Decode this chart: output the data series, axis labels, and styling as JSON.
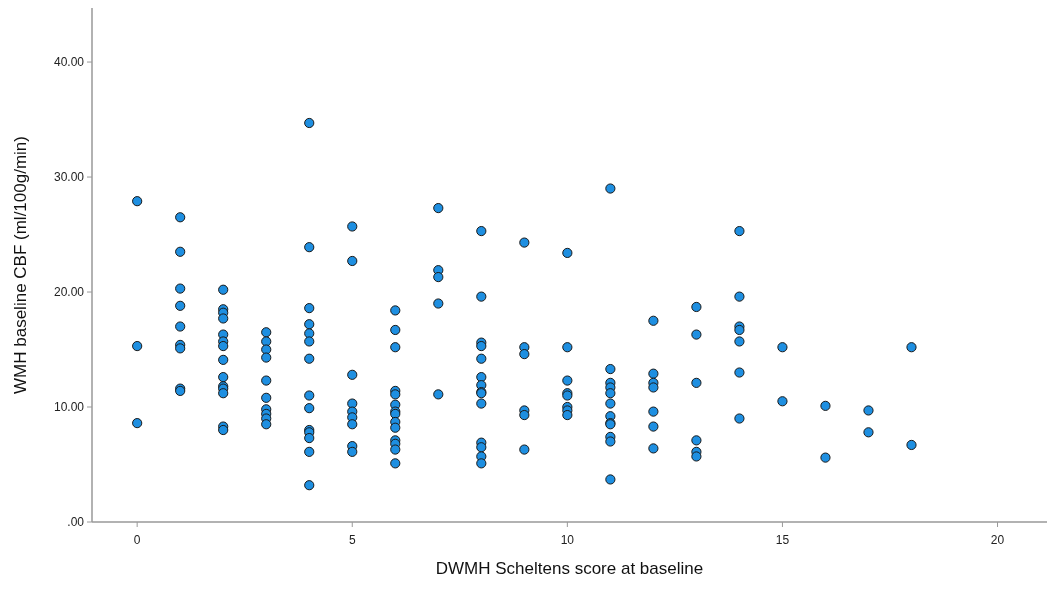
{
  "chart_data": {
    "type": "scatter",
    "xlabel": "DWMH Scheltens score at baseline",
    "ylabel": "WMH baseline CBF (ml/100g/min)",
    "xlim": [
      -1.05,
      21.15
    ],
    "xticks": [
      0,
      5,
      10,
      15,
      20
    ],
    "ylim": [
      0,
      44.7
    ],
    "yticks": [
      {
        "value": 0,
        "label": ".00"
      },
      {
        "value": 10,
        "label": "10.00"
      },
      {
        "value": 20,
        "label": "20.00"
      },
      {
        "value": 30,
        "label": "30.00"
      },
      {
        "value": 40,
        "label": "40.00"
      }
    ],
    "grid": false,
    "marker": "circle",
    "series": [
      {
        "color": "#1e8fe1",
        "x": [
          0,
          0,
          0,
          1,
          1,
          1,
          1,
          1,
          1,
          1,
          1,
          1,
          2,
          2,
          2,
          2,
          2,
          2,
          2,
          2,
          2,
          2,
          2,
          2,
          2,
          2,
          3,
          3,
          3,
          3,
          3,
          3,
          3,
          3,
          3,
          3,
          4,
          4,
          4,
          4,
          4,
          4,
          4,
          4,
          4,
          4,
          4,
          4,
          4,
          4,
          5,
          5,
          5,
          5,
          5,
          5,
          5,
          5,
          5,
          6,
          6,
          6,
          6,
          6,
          6,
          6,
          6,
          6,
          6,
          6,
          6,
          6,
          6,
          7,
          7,
          7,
          7,
          7,
          8,
          8,
          8,
          8,
          8,
          8,
          8,
          8,
          8,
          8,
          8,
          8,
          8,
          8,
          9,
          9,
          9,
          9,
          9,
          9,
          10,
          10,
          10,
          10,
          10,
          10,
          10,
          10,
          11,
          11,
          11,
          11,
          11,
          11,
          11,
          11,
          11,
          11,
          11,
          11,
          12,
          12,
          12,
          12,
          12,
          12,
          12,
          13,
          13,
          13,
          13,
          13,
          13,
          14,
          14,
          14,
          14,
          14,
          14,
          14,
          15,
          15,
          16,
          16,
          17,
          17,
          18,
          18
        ],
        "values": [
          27.9,
          15.3,
          8.6,
          26.5,
          23.5,
          20.3,
          18.8,
          17.0,
          15.4,
          15.1,
          11.6,
          11.4,
          20.2,
          18.5,
          18.2,
          17.7,
          16.3,
          15.7,
          15.3,
          14.1,
          12.6,
          11.8,
          11.6,
          11.2,
          8.3,
          8.0,
          16.5,
          15.7,
          15.0,
          14.3,
          12.3,
          10.8,
          9.8,
          9.4,
          9.0,
          8.5,
          34.7,
          23.9,
          18.6,
          17.2,
          16.4,
          15.7,
          14.2,
          11.0,
          9.9,
          8.0,
          7.8,
          7.3,
          6.1,
          3.2,
          25.7,
          22.7,
          12.8,
          10.3,
          9.6,
          9.1,
          8.5,
          6.6,
          6.1,
          18.4,
          16.7,
          15.2,
          11.4,
          11.1,
          10.2,
          9.6,
          9.4,
          8.7,
          8.2,
          7.1,
          6.8,
          6.3,
          5.1,
          27.3,
          21.9,
          21.3,
          19.0,
          11.1,
          25.3,
          19.6,
          15.6,
          15.3,
          14.2,
          12.6,
          11.9,
          11.3,
          11.2,
          10.3,
          6.9,
          6.5,
          5.7,
          5.1,
          24.3,
          15.2,
          14.6,
          9.7,
          9.3,
          6.3,
          23.4,
          15.2,
          12.3,
          11.2,
          11.0,
          10.0,
          9.7,
          9.3,
          29.0,
          13.3,
          12.1,
          11.7,
          11.2,
          10.3,
          9.2,
          8.6,
          8.5,
          7.4,
          7.0,
          3.7,
          17.5,
          12.9,
          12.1,
          11.7,
          9.6,
          8.3,
          6.4,
          18.7,
          16.3,
          12.1,
          7.1,
          6.1,
          5.7,
          25.3,
          19.6,
          17.0,
          16.7,
          15.7,
          13.0,
          9.0,
          15.2,
          10.5,
          10.1,
          5.6,
          9.7,
          7.8,
          15.2,
          6.7
        ]
      }
    ]
  }
}
